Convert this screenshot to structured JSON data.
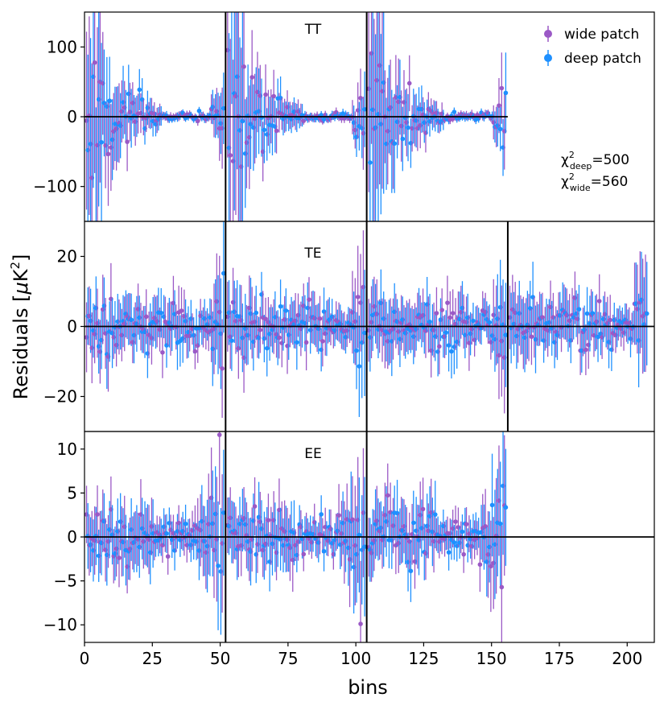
{
  "chart_data": {
    "type": "scatter",
    "title": "",
    "xlabel": "bins",
    "ylabel_prefix": "Residuals [",
    "ylabel_mu": "μ",
    "ylabel_unit": "K",
    "ylabel_exp": "2",
    "ylabel_suffix": "]",
    "xlim": [
      0,
      210
    ],
    "x_ticks": [
      0,
      25,
      50,
      75,
      100,
      125,
      150,
      175,
      200
    ],
    "x_tick_labels": [
      "0",
      "25",
      "50",
      "75",
      "100",
      "125",
      "150",
      "175",
      "200"
    ],
    "legend": [
      {
        "name": "wide patch",
        "color": "#9b59c6"
      },
      {
        "name": "deep patch",
        "color": "#1e90ff"
      }
    ],
    "colors": {
      "wide": "#9b59c6",
      "deep": "#1e90ff",
      "axis": "#000000"
    },
    "chi_annotation": {
      "chi": "χ",
      "sup": "2",
      "deep_sub": "deep",
      "deep_value": "=500",
      "wide_sub": "wide",
      "wide_value": "=560"
    },
    "panels": [
      {
        "label": "TT",
        "ylim": [
          -150,
          150
        ],
        "y_ticks": [
          100,
          0,
          -100
        ],
        "y_tick_labels": [
          "100",
          "0",
          "−100"
        ],
        "segments": [
          [
            0,
            52
          ],
          [
            52,
            104
          ],
          [
            104,
            156
          ]
        ],
        "boundaries": [
          52,
          104
        ],
        "zero_line_to": 156
      },
      {
        "label": "TE",
        "ylim": [
          -30,
          30
        ],
        "y_ticks": [
          20,
          0,
          -20
        ],
        "y_tick_labels": [
          "20",
          "0",
          "−20"
        ],
        "segments": [
          [
            0,
            52
          ],
          [
            52,
            104
          ],
          [
            104,
            156
          ],
          [
            156,
            208
          ]
        ],
        "boundaries": [
          52,
          104,
          156
        ],
        "zero_line_to": 210
      },
      {
        "label": "EE",
        "ylim": [
          -12,
          12
        ],
        "y_ticks": [
          10,
          5,
          0,
          -5,
          -10
        ],
        "y_tick_labels": [
          "10",
          "5",
          "0",
          "−5",
          "−10"
        ],
        "segments": [
          [
            0,
            52
          ],
          [
            52,
            104
          ],
          [
            104,
            156
          ]
        ],
        "boundaries": [
          52,
          104
        ],
        "zero_line_to": 210
      }
    ]
  }
}
